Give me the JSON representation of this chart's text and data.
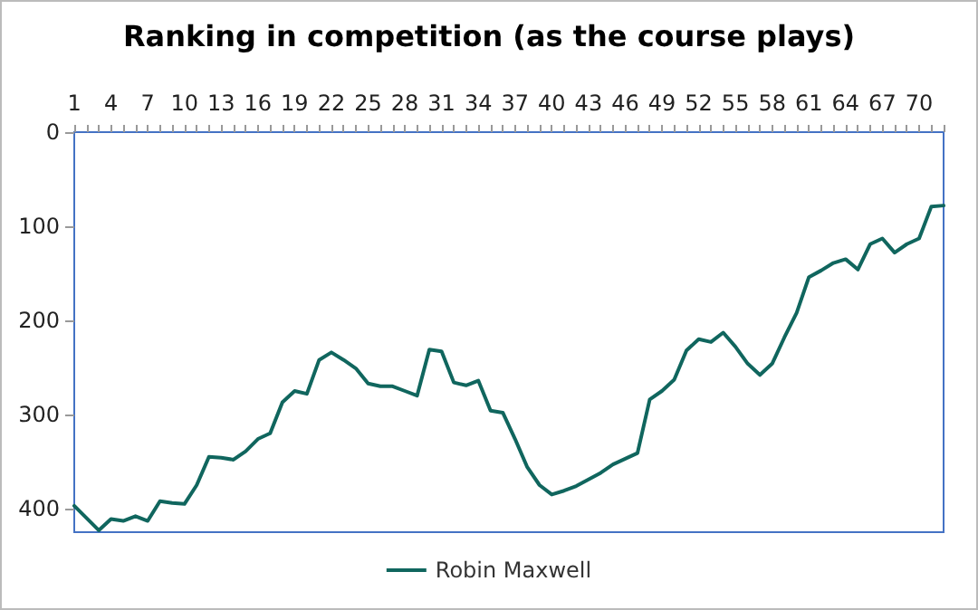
{
  "chart_data": {
    "type": "line",
    "title": "Ranking in competition (as the course plays)",
    "categories": [
      "1",
      null,
      null,
      "4",
      null,
      null,
      "7",
      null,
      null,
      "10",
      null,
      null,
      "13",
      null,
      null,
      "16",
      null,
      null,
      "19",
      null,
      null,
      "22",
      null,
      null,
      "25",
      null,
      null,
      "28",
      null,
      null,
      "31",
      null,
      null,
      "34",
      null,
      null,
      "37",
      null,
      null,
      "40",
      null,
      null,
      "43",
      null,
      null,
      "46",
      null,
      null,
      "49",
      null,
      null,
      "52",
      null,
      null,
      "55",
      null,
      null,
      "58",
      null,
      null,
      "61",
      null,
      null,
      "64",
      null,
      null,
      "67",
      null,
      null,
      "70",
      null,
      null
    ],
    "series": [
      {
        "name": "Robin Maxwell",
        "color": "#10665e",
        "values": [
          397,
          410,
          423,
          411,
          413,
          408,
          413,
          392,
          394,
          395,
          375,
          345,
          346,
          348,
          339,
          326,
          320,
          287,
          275,
          278,
          242,
          234,
          242,
          251,
          267,
          270,
          270,
          275,
          280,
          231,
          233,
          266,
          269,
          264,
          296,
          298,
          326,
          356,
          375,
          385,
          381,
          376,
          369,
          362,
          353,
          347,
          341,
          284,
          275,
          263,
          232,
          220,
          223,
          213,
          228,
          246,
          258,
          246,
          218,
          192,
          154,
          147,
          139,
          135,
          146,
          119,
          113,
          128,
          119,
          113,
          79,
          78
        ]
      }
    ],
    "ylim": [
      425,
      0
    ],
    "yticks": [
      0,
      100,
      200,
      300,
      400
    ],
    "grid": false,
    "legend": "bottom",
    "marker": "none",
    "line_style": "solid"
  }
}
